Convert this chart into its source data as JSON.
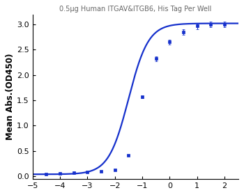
{
  "title": "0.5μg Human ITGAV&ITGB6, His Tag Per Well",
  "xlabel": "",
  "ylabel": "Mean Abs.(OD450)",
  "xlim": [
    -5,
    2.5
  ],
  "ylim": [
    -0.05,
    3.2
  ],
  "xticks": [
    -5,
    -4,
    -3,
    -2,
    -1,
    0,
    1,
    2
  ],
  "yticks": [
    0.0,
    0.5,
    1.0,
    1.5,
    2.0,
    2.5,
    3.0
  ],
  "data_x": [
    -4.5,
    -4.0,
    -3.5,
    -3.0,
    -2.5,
    -2.0,
    -1.5,
    -1.0,
    -0.5,
    0.0,
    0.5,
    1.0,
    1.5,
    2.0
  ],
  "data_y": [
    0.05,
    0.06,
    0.07,
    0.08,
    0.1,
    0.13,
    0.42,
    1.57,
    2.32,
    2.65,
    2.85,
    2.97,
    3.0,
    3.0
  ],
  "line_color": "#1530cc",
  "marker_color": "#1530cc",
  "title_fontsize": 7.0,
  "label_fontsize": 8.5,
  "tick_fontsize": 8,
  "background_color": "#ffffff",
  "fig_width": 3.5,
  "fig_height": 2.8,
  "grid": false
}
